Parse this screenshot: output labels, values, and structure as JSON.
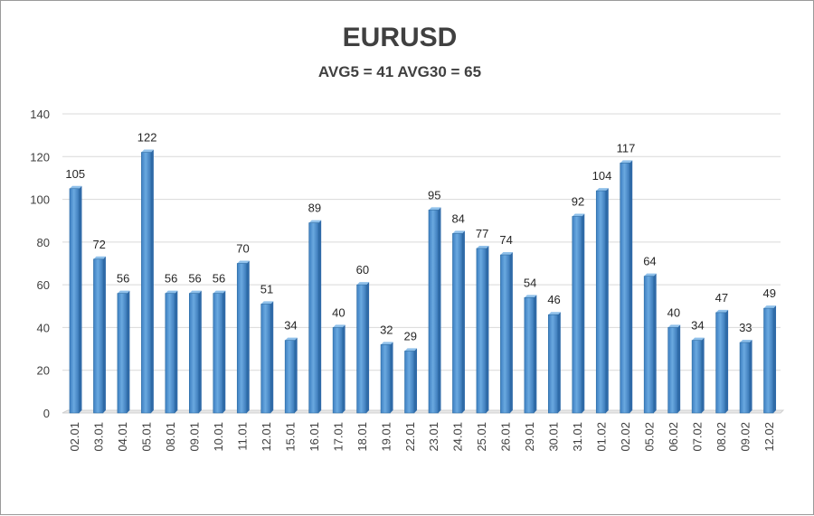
{
  "chart_data": {
    "type": "bar",
    "title": "EURUSD",
    "subtitle": "AVG5 = 41 AVG30 = 65",
    "xlabel": "",
    "ylabel": "",
    "ylim": [
      0,
      140
    ],
    "yticks": [
      0,
      20,
      40,
      60,
      80,
      100,
      120,
      140
    ],
    "grid": true,
    "categories": [
      "02.01",
      "03.01",
      "04.01",
      "05.01",
      "08.01",
      "09.01",
      "10.01",
      "11.01",
      "12.01",
      "15.01",
      "16.01",
      "17.01",
      "18.01",
      "19.01",
      "22.01",
      "23.01",
      "24.01",
      "25.01",
      "26.01",
      "29.01",
      "30.01",
      "31.01",
      "01.02",
      "02.02",
      "05.02",
      "06.02",
      "07.02",
      "08.02",
      "09.02",
      "12.02"
    ],
    "values": [
      105,
      72,
      56,
      122,
      56,
      56,
      56,
      70,
      51,
      34,
      89,
      40,
      60,
      32,
      29,
      95,
      84,
      77,
      74,
      54,
      46,
      92,
      104,
      117,
      64,
      40,
      34,
      47,
      33,
      49
    ],
    "bar_color": "#5b9bd5",
    "bar_edge_color": "#2e6da4"
  }
}
